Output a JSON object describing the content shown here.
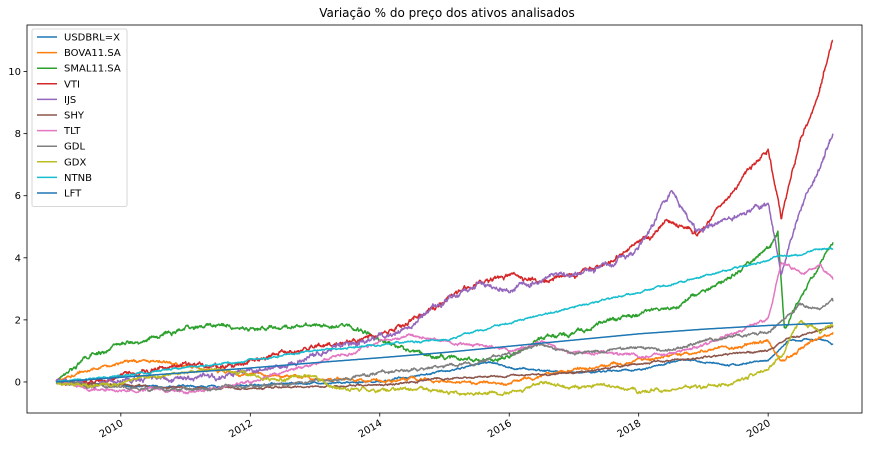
{
  "chart_data": {
    "type": "line",
    "title": "Variação % do preço dos ativos analisados",
    "xlabel": "",
    "ylabel": "",
    "xlim": [
      2008.55,
      2021.45
    ],
    "ylim": [
      -1.0,
      11.5
    ],
    "xticks": [
      2010,
      2012,
      2014,
      2016,
      2018,
      2020
    ],
    "xtick_labels": [
      "2010",
      "2012",
      "2014",
      "2016",
      "2018",
      "2020"
    ],
    "yticks": [
      0,
      2,
      4,
      6,
      8,
      10
    ],
    "ytick_labels": [
      "0",
      "2",
      "4",
      "6",
      "8",
      "10"
    ],
    "legend_position": "upper-left",
    "grid": false,
    "series": [
      {
        "name": "USDBRL=X",
        "color": "#1f77b4",
        "noise": 0.03,
        "points": [
          [
            2009.0,
            0.0
          ],
          [
            2010.0,
            -0.12
          ],
          [
            2011.5,
            -0.15
          ],
          [
            2012.5,
            -0.05
          ],
          [
            2014.0,
            0.02
          ],
          [
            2015.0,
            0.35
          ],
          [
            2015.7,
            0.65
          ],
          [
            2016.0,
            0.45
          ],
          [
            2017.0,
            0.3
          ],
          [
            2018.0,
            0.4
          ],
          [
            2018.7,
            0.7
          ],
          [
            2019.5,
            0.55
          ],
          [
            2020.0,
            0.7
          ],
          [
            2020.3,
            1.3
          ],
          [
            2020.8,
            1.4
          ],
          [
            2021.0,
            1.2
          ]
        ]
      },
      {
        "name": "BOVA11.SA",
        "color": "#ff7f0e",
        "noise": 0.05,
        "points": [
          [
            2009.0,
            0.0
          ],
          [
            2009.5,
            0.4
          ],
          [
            2010.0,
            0.6
          ],
          [
            2010.5,
            0.7
          ],
          [
            2011.0,
            0.5
          ],
          [
            2011.5,
            0.35
          ],
          [
            2012.0,
            0.25
          ],
          [
            2012.5,
            0.2
          ],
          [
            2013.0,
            0.1
          ],
          [
            2014.0,
            0.05
          ],
          [
            2014.5,
            0.1
          ],
          [
            2015.0,
            0.05
          ],
          [
            2015.5,
            -0.05
          ],
          [
            2016.0,
            0.0
          ],
          [
            2016.5,
            0.2
          ],
          [
            2017.0,
            0.4
          ],
          [
            2018.0,
            0.7
          ],
          [
            2019.0,
            1.0
          ],
          [
            2020.0,
            1.3
          ],
          [
            2020.2,
            0.6
          ],
          [
            2020.5,
            1.1
          ],
          [
            2021.0,
            1.6
          ]
        ]
      },
      {
        "name": "SMAL11.SA",
        "color": "#2ca02c",
        "noise": 0.07,
        "points": [
          [
            2009.0,
            0.0
          ],
          [
            2009.4,
            0.7
          ],
          [
            2010.0,
            1.2
          ],
          [
            2010.5,
            1.4
          ],
          [
            2011.0,
            1.7
          ],
          [
            2011.5,
            1.85
          ],
          [
            2012.0,
            1.7
          ],
          [
            2012.5,
            1.75
          ],
          [
            2013.0,
            1.9
          ],
          [
            2013.5,
            1.8
          ],
          [
            2014.0,
            1.4
          ],
          [
            2014.5,
            1.0
          ],
          [
            2015.0,
            0.8
          ],
          [
            2015.5,
            0.7
          ],
          [
            2016.0,
            0.8
          ],
          [
            2016.5,
            1.4
          ],
          [
            2017.0,
            1.6
          ],
          [
            2017.5,
            2.0
          ],
          [
            2018.0,
            2.2
          ],
          [
            2018.5,
            2.4
          ],
          [
            2019.0,
            2.9
          ],
          [
            2019.5,
            3.5
          ],
          [
            2020.0,
            4.3
          ],
          [
            2020.15,
            4.8
          ],
          [
            2020.25,
            1.6
          ],
          [
            2020.5,
            2.8
          ],
          [
            2020.8,
            3.8
          ],
          [
            2021.0,
            4.5
          ]
        ]
      },
      {
        "name": "VTI",
        "color": "#d62728",
        "noise": 0.08,
        "points": [
          [
            2009.0,
            0.0
          ],
          [
            2009.5,
            0.05
          ],
          [
            2010.0,
            0.2
          ],
          [
            2010.5,
            0.4
          ],
          [
            2011.0,
            0.6
          ],
          [
            2011.5,
            0.5
          ],
          [
            2012.0,
            0.7
          ],
          [
            2012.5,
            0.9
          ],
          [
            2013.0,
            1.1
          ],
          [
            2013.5,
            1.3
          ],
          [
            2014.0,
            1.5
          ],
          [
            2014.5,
            2.0
          ],
          [
            2015.0,
            2.6
          ],
          [
            2015.5,
            3.2
          ],
          [
            2016.0,
            3.4
          ],
          [
            2016.5,
            3.2
          ],
          [
            2017.0,
            3.4
          ],
          [
            2017.5,
            3.8
          ],
          [
            2018.0,
            4.4
          ],
          [
            2018.5,
            5.2
          ],
          [
            2018.9,
            4.8
          ],
          [
            2019.3,
            5.8
          ],
          [
            2019.7,
            6.8
          ],
          [
            2020.0,
            7.5
          ],
          [
            2020.2,
            5.2
          ],
          [
            2020.5,
            7.8
          ],
          [
            2020.8,
            9.5
          ],
          [
            2021.0,
            11.0
          ]
        ]
      },
      {
        "name": "IJS",
        "color": "#9467bd",
        "noise": 0.09,
        "points": [
          [
            2009.0,
            0.0
          ],
          [
            2009.5,
            -0.1
          ],
          [
            2010.0,
            0.0
          ],
          [
            2010.5,
            0.1
          ],
          [
            2011.0,
            0.2
          ],
          [
            2011.5,
            0.1
          ],
          [
            2012.0,
            0.3
          ],
          [
            2012.5,
            0.5
          ],
          [
            2013.0,
            0.9
          ],
          [
            2013.5,
            1.2
          ],
          [
            2014.0,
            1.4
          ],
          [
            2014.5,
            1.8
          ],
          [
            2015.0,
            2.6
          ],
          [
            2015.5,
            3.1
          ],
          [
            2016.0,
            2.9
          ],
          [
            2016.5,
            3.3
          ],
          [
            2017.0,
            3.5
          ],
          [
            2017.5,
            3.8
          ],
          [
            2018.0,
            4.3
          ],
          [
            2018.5,
            6.2
          ],
          [
            2018.9,
            4.8
          ],
          [
            2019.3,
            5.2
          ],
          [
            2019.7,
            5.5
          ],
          [
            2020.0,
            5.8
          ],
          [
            2020.2,
            3.5
          ],
          [
            2020.5,
            5.5
          ],
          [
            2020.8,
            7.0
          ],
          [
            2021.0,
            8.0
          ]
        ]
      },
      {
        "name": "SHY",
        "color": "#8c564b",
        "noise": 0.03,
        "points": [
          [
            2009.0,
            0.0
          ],
          [
            2010.0,
            -0.1
          ],
          [
            2011.0,
            -0.2
          ],
          [
            2012.0,
            -0.2
          ],
          [
            2013.0,
            -0.15
          ],
          [
            2014.0,
            -0.1
          ],
          [
            2015.0,
            0.1
          ],
          [
            2016.0,
            0.2
          ],
          [
            2017.0,
            0.3
          ],
          [
            2018.0,
            0.6
          ],
          [
            2019.0,
            0.8
          ],
          [
            2020.0,
            1.0
          ],
          [
            2020.3,
            1.4
          ],
          [
            2020.7,
            1.6
          ],
          [
            2021.0,
            1.8
          ]
        ]
      },
      {
        "name": "TLT",
        "color": "#e377c2",
        "noise": 0.05,
        "points": [
          [
            2009.0,
            0.0
          ],
          [
            2009.5,
            -0.2
          ],
          [
            2010.0,
            -0.3
          ],
          [
            2010.5,
            -0.2
          ],
          [
            2011.0,
            -0.4
          ],
          [
            2011.5,
            -0.2
          ],
          [
            2012.0,
            0.0
          ],
          [
            2012.5,
            0.3
          ],
          [
            2013.0,
            0.6
          ],
          [
            2013.5,
            0.9
          ],
          [
            2014.0,
            1.3
          ],
          [
            2014.5,
            1.5
          ],
          [
            2015.0,
            1.3
          ],
          [
            2015.5,
            1.2
          ],
          [
            2016.0,
            1.0
          ],
          [
            2016.5,
            1.3
          ],
          [
            2017.0,
            0.9
          ],
          [
            2017.5,
            1.0
          ],
          [
            2018.0,
            0.8
          ],
          [
            2018.5,
            0.9
          ],
          [
            2019.0,
            1.2
          ],
          [
            2019.5,
            1.6
          ],
          [
            2020.0,
            2.0
          ],
          [
            2020.2,
            3.8
          ],
          [
            2020.5,
            3.5
          ],
          [
            2020.8,
            3.7
          ],
          [
            2021.0,
            3.3
          ]
        ]
      },
      {
        "name": "GDL",
        "color": "#7f7f7f",
        "noise": 0.05,
        "points": [
          [
            2009.0,
            0.0
          ],
          [
            2009.5,
            -0.1
          ],
          [
            2010.0,
            -0.2
          ],
          [
            2011.0,
            -0.25
          ],
          [
            2012.0,
            -0.15
          ],
          [
            2013.0,
            0.0
          ],
          [
            2014.0,
            0.3
          ],
          [
            2014.5,
            0.4
          ],
          [
            2015.0,
            0.5
          ],
          [
            2015.5,
            0.6
          ],
          [
            2016.0,
            0.9
          ],
          [
            2016.5,
            1.2
          ],
          [
            2017.0,
            0.9
          ],
          [
            2017.5,
            1.0
          ],
          [
            2018.0,
            1.1
          ],
          [
            2018.5,
            1.0
          ],
          [
            2019.0,
            1.3
          ],
          [
            2019.5,
            1.5
          ],
          [
            2020.0,
            1.6
          ],
          [
            2020.2,
            1.9
          ],
          [
            2020.5,
            2.5
          ],
          [
            2020.8,
            2.3
          ],
          [
            2021.0,
            2.6
          ]
        ]
      },
      {
        "name": "GDX",
        "color": "#bcbd22",
        "noise": 0.06,
        "points": [
          [
            2009.0,
            0.0
          ],
          [
            2009.5,
            -0.1
          ],
          [
            2010.0,
            0.0
          ],
          [
            2010.5,
            0.2
          ],
          [
            2011.0,
            0.3
          ],
          [
            2011.5,
            0.4
          ],
          [
            2012.0,
            0.2
          ],
          [
            2012.5,
            0.1
          ],
          [
            2013.0,
            0.2
          ],
          [
            2013.3,
            -0.2
          ],
          [
            2014.0,
            -0.3
          ],
          [
            2014.5,
            -0.2
          ],
          [
            2015.0,
            -0.3
          ],
          [
            2015.5,
            -0.4
          ],
          [
            2016.0,
            -0.35
          ],
          [
            2016.5,
            0.0
          ],
          [
            2017.0,
            -0.2
          ],
          [
            2017.5,
            -0.1
          ],
          [
            2018.0,
            -0.3
          ],
          [
            2018.5,
            -0.25
          ],
          [
            2019.0,
            -0.2
          ],
          [
            2019.5,
            0.0
          ],
          [
            2020.0,
            0.4
          ],
          [
            2020.2,
            0.8
          ],
          [
            2020.5,
            2.0
          ],
          [
            2020.8,
            1.6
          ],
          [
            2021.0,
            1.8
          ]
        ]
      },
      {
        "name": "NTNB",
        "color": "#17becf",
        "noise": 0.03,
        "points": [
          [
            2009.0,
            0.0
          ],
          [
            2010.0,
            0.2
          ],
          [
            2011.0,
            0.45
          ],
          [
            2012.0,
            0.7
          ],
          [
            2013.0,
            1.0
          ],
          [
            2014.0,
            1.2
          ],
          [
            2015.0,
            1.35
          ],
          [
            2016.0,
            1.9
          ],
          [
            2017.0,
            2.4
          ],
          [
            2018.0,
            2.9
          ],
          [
            2019.0,
            3.4
          ],
          [
            2020.0,
            3.9
          ],
          [
            2020.2,
            4.1
          ],
          [
            2020.5,
            4.1
          ],
          [
            2020.8,
            4.3
          ],
          [
            2021.0,
            4.3
          ]
        ]
      },
      {
        "name": "LFT",
        "color": "#1f77b4",
        "noise": 0.0,
        "points": [
          [
            2009.0,
            0.0
          ],
          [
            2010.0,
            0.15
          ],
          [
            2011.0,
            0.3
          ],
          [
            2012.0,
            0.45
          ],
          [
            2013.0,
            0.62
          ],
          [
            2014.0,
            0.78
          ],
          [
            2015.0,
            0.95
          ],
          [
            2016.0,
            1.15
          ],
          [
            2017.0,
            1.35
          ],
          [
            2018.0,
            1.55
          ],
          [
            2019.0,
            1.7
          ],
          [
            2020.0,
            1.82
          ],
          [
            2021.0,
            1.9
          ]
        ]
      }
    ]
  }
}
